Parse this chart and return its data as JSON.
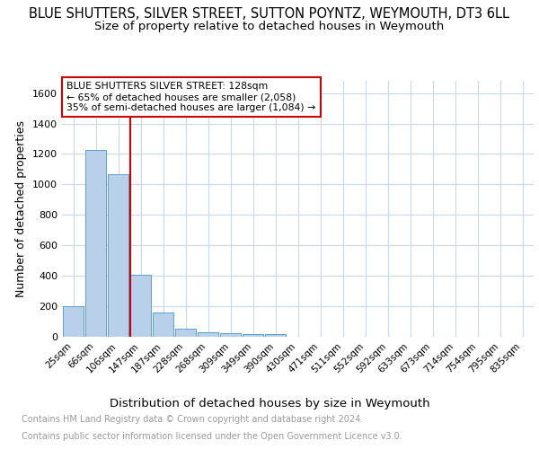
{
  "title": "BLUE SHUTTERS, SILVER STREET, SUTTON POYNTZ, WEYMOUTH, DT3 6LL",
  "subtitle": "Size of property relative to detached houses in Weymouth",
  "xlabel": "Distribution of detached houses by size in Weymouth",
  "ylabel": "Number of detached properties",
  "bar_color": "#b8d0ea",
  "bar_edge_color": "#5a9fd4",
  "grid_color": "#c8d8e8",
  "categories": [
    "25sqm",
    "66sqm",
    "106sqm",
    "147sqm",
    "187sqm",
    "228sqm",
    "268sqm",
    "309sqm",
    "349sqm",
    "390sqm",
    "430sqm",
    "471sqm",
    "511sqm",
    "552sqm",
    "592sqm",
    "633sqm",
    "673sqm",
    "714sqm",
    "754sqm",
    "795sqm",
    "835sqm"
  ],
  "values": [
    202,
    1225,
    1068,
    406,
    160,
    52,
    30,
    22,
    15,
    18,
    0,
    0,
    0,
    0,
    0,
    0,
    0,
    0,
    0,
    0,
    0
  ],
  "ylim": [
    0,
    1680
  ],
  "yticks": [
    0,
    200,
    400,
    600,
    800,
    1000,
    1200,
    1400,
    1600
  ],
  "annotation_text": "BLUE SHUTTERS SILVER STREET: 128sqm\n← 65% of detached houses are smaller (2,058)\n35% of semi-detached houses are larger (1,084) →",
  "annotation_box_color": "#ffffff",
  "annotation_border_color": "#cc0000",
  "vline_color": "#cc0000",
  "footer_line1": "Contains HM Land Registry data © Crown copyright and database right 2024.",
  "footer_line2": "Contains public sector information licensed under the Open Government Licence v3.0.",
  "background_color": "#ffffff",
  "title_fontsize": 10.5,
  "subtitle_fontsize": 9.5,
  "ylabel_fontsize": 9,
  "xlabel_fontsize": 9.5,
  "footer_color": "#999999",
  "footer_fontsize": 7
}
